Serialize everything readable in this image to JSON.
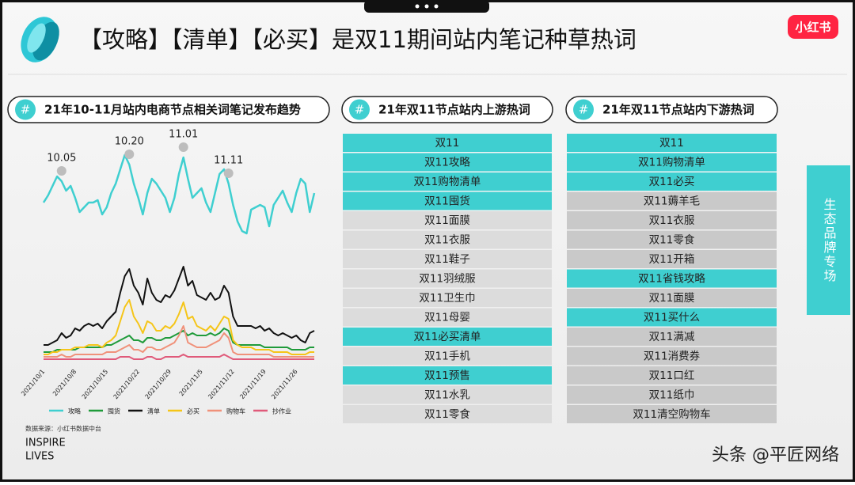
{
  "header": {
    "title": "【攻略】【清单】【必买】是双11期间站内笔记种草热词",
    "logo": "小红书"
  },
  "tag": "#",
  "chart_data": {
    "type": "line",
    "title": "21年10-11月站内电商节点相关词笔记发布趋势",
    "categories": [
      "2021/10/1",
      null,
      null,
      null,
      null,
      null,
      null,
      "2021/10/8",
      null,
      null,
      null,
      null,
      null,
      null,
      "2021/10/15",
      null,
      null,
      null,
      null,
      null,
      null,
      "2021/10/22",
      null,
      null,
      null,
      null,
      null,
      null,
      "2021/10/29",
      null,
      null,
      null,
      null,
      null,
      null,
      "2021/11/5",
      null,
      null,
      null,
      null,
      null,
      null,
      "2021/11/12",
      null,
      null,
      null,
      null,
      null,
      null,
      "2021/11/19",
      null,
      null,
      null,
      null,
      null,
      null,
      "2021/11/26",
      null,
      null,
      null,
      null
    ],
    "ylim": [
      0,
      100
    ],
    "series": [
      {
        "name": "攻略",
        "color": "#3fcfd0",
        "values": [
          68,
          71,
          75,
          79,
          77,
          73,
          75,
          70,
          64,
          66,
          68,
          68,
          69,
          63,
          66,
          72,
          76,
          82,
          88,
          84,
          76,
          70,
          63,
          72,
          78,
          76,
          73,
          70,
          64,
          70,
          80,
          87,
          78,
          70,
          72,
          74,
          68,
          64,
          72,
          80,
          82,
          76,
          67,
          60,
          56,
          55,
          65,
          66,
          67,
          66,
          58,
          67,
          70,
          73,
          68,
          64,
          72,
          78,
          76,
          64,
          72
        ]
      },
      {
        "name": "囤货",
        "color": "#1f9b3a",
        "values": [
          5,
          5,
          5,
          6,
          6,
          6,
          6,
          6,
          7,
          7,
          7,
          7,
          7,
          7,
          8,
          8,
          9,
          10,
          11,
          12,
          10,
          10,
          9,
          11,
          11,
          10,
          10,
          11,
          11,
          12,
          13,
          14,
          12,
          13,
          12,
          12,
          12,
          13,
          12,
          13,
          15,
          14,
          9,
          8,
          8,
          8,
          8,
          8,
          8,
          7,
          7,
          7,
          7,
          7,
          7,
          6,
          6,
          6,
          6,
          7,
          7
        ]
      },
      {
        "name": "清单",
        "color": "#111111",
        "values": [
          8,
          8,
          9,
          10,
          13,
          11,
          12,
          15,
          14,
          16,
          17,
          16,
          17,
          15,
          18,
          20,
          22,
          30,
          37,
          40,
          33,
          30,
          25,
          36,
          30,
          27,
          26,
          29,
          28,
          31,
          36,
          41,
          33,
          35,
          29,
          28,
          27,
          30,
          27,
          28,
          33,
          30,
          20,
          16,
          16,
          16,
          16,
          15,
          16,
          14,
          15,
          13,
          12,
          13,
          12,
          11,
          12,
          10,
          9,
          13,
          14
        ]
      },
      {
        "name": "必买",
        "color": "#f5c518",
        "values": [
          4,
          4,
          5,
          5,
          6,
          6,
          6,
          7,
          7,
          7,
          8,
          8,
          8,
          7,
          9,
          10,
          12,
          18,
          24,
          27,
          20,
          17,
          13,
          18,
          17,
          14,
          14,
          16,
          15,
          17,
          21,
          26,
          19,
          20,
          16,
          15,
          14,
          16,
          14,
          17,
          20,
          19,
          10,
          8,
          7,
          7,
          7,
          6,
          6,
          6,
          6,
          5,
          5,
          5,
          5,
          4,
          4,
          4,
          4,
          5,
          5
        ]
      },
      {
        "name": "购物车",
        "color": "#f0917a",
        "values": [
          3,
          3,
          3,
          3,
          4,
          3,
          3,
          4,
          4,
          4,
          4,
          4,
          4,
          4,
          5,
          5,
          5,
          6,
          7,
          8,
          6,
          6,
          5,
          7,
          7,
          6,
          6,
          7,
          8,
          9,
          12,
          16,
          9,
          8,
          7,
          7,
          7,
          8,
          9,
          10,
          13,
          11,
          5,
          4,
          4,
          4,
          4,
          4,
          4,
          4,
          4,
          3,
          3,
          3,
          3,
          3,
          3,
          3,
          3,
          3,
          3
        ]
      },
      {
        "name": "抄作业",
        "color": "#e05a7a",
        "values": [
          2,
          2,
          2,
          2,
          2,
          2,
          2,
          2,
          2,
          2,
          2,
          2,
          2,
          2,
          2,
          2,
          2,
          3,
          3,
          3,
          2,
          2,
          2,
          3,
          3,
          2,
          2,
          3,
          3,
          3,
          3,
          4,
          3,
          3,
          3,
          3,
          3,
          3,
          3,
          3,
          4,
          3,
          2,
          2,
          2,
          2,
          2,
          2,
          2,
          2,
          2,
          2,
          2,
          2,
          2,
          2,
          2,
          2,
          2,
          2,
          2
        ]
      }
    ],
    "annotations": [
      {
        "text": "10.05",
        "at": 4
      },
      {
        "text": "10.20",
        "at": 19
      },
      {
        "text": "11.01",
        "at": 31
      },
      {
        "text": "11.11",
        "at": 41
      }
    ],
    "source": "数据来源：小红书数据中台"
  },
  "upstream": {
    "title": "21年双11节点站内上游热词",
    "items": [
      {
        "text": "双11",
        "highlight": true
      },
      {
        "text": "双11攻略",
        "highlight": true
      },
      {
        "text": "双11购物清单",
        "highlight": true
      },
      {
        "text": "双11囤货",
        "highlight": true
      },
      {
        "text": "双11面膜",
        "highlight": false
      },
      {
        "text": "双11衣服",
        "highlight": false
      },
      {
        "text": "双11鞋子",
        "highlight": false
      },
      {
        "text": "双11羽绒服",
        "highlight": false
      },
      {
        "text": "双11卫生巾",
        "highlight": false
      },
      {
        "text": "双11母婴",
        "highlight": false
      },
      {
        "text": "双11必买清单",
        "highlight": true
      },
      {
        "text": "双11手机",
        "highlight": false
      },
      {
        "text": "双11预售",
        "highlight": true
      },
      {
        "text": "双11水乳",
        "highlight": false
      },
      {
        "text": "双11零食",
        "highlight": false
      }
    ]
  },
  "downstream": {
    "title": "21年双11节点站内下游热词",
    "items": [
      {
        "text": "双11",
        "highlight": true
      },
      {
        "text": "双11购物清单",
        "highlight": true
      },
      {
        "text": "双11必买",
        "highlight": true
      },
      {
        "text": "双11薅羊毛",
        "highlight": false
      },
      {
        "text": "双11衣服",
        "highlight": false
      },
      {
        "text": "双11零食",
        "highlight": false
      },
      {
        "text": "双11开箱",
        "highlight": false
      },
      {
        "text": "双11省钱攻略",
        "highlight": true
      },
      {
        "text": "双11面膜",
        "highlight": false
      },
      {
        "text": "双11买什么",
        "highlight": true
      },
      {
        "text": "双11满减",
        "highlight": false
      },
      {
        "text": "双11消费券",
        "highlight": false
      },
      {
        "text": "双11口红",
        "highlight": false
      },
      {
        "text": "双11纸巾",
        "highlight": false
      },
      {
        "text": "双11清空购物车",
        "highlight": false
      }
    ]
  },
  "side_tab": "生态品牌专场",
  "footer": {
    "brand": [
      "INSPIRE",
      "LIVES"
    ],
    "watermark": "头条 @平匠网络"
  }
}
